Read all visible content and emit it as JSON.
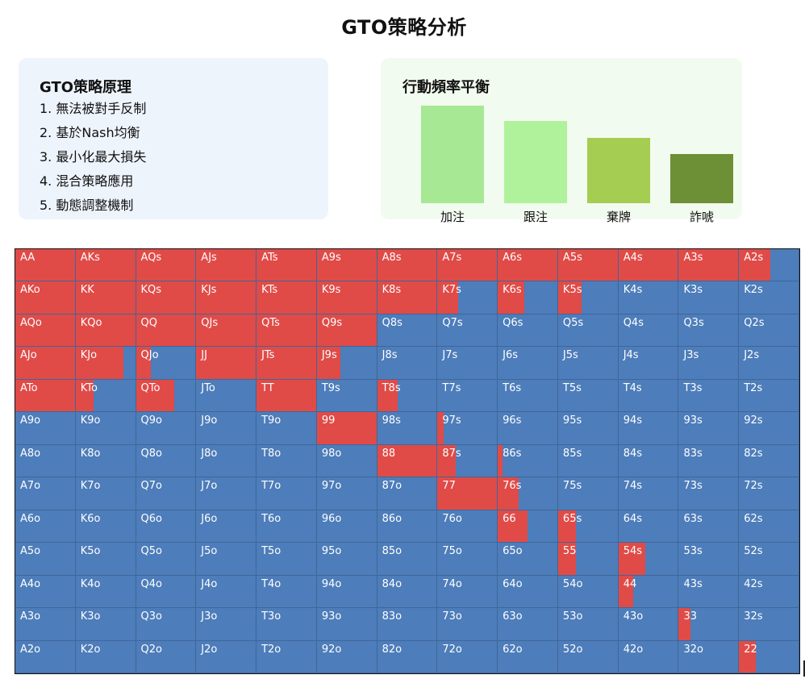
{
  "title": "GTO策略分析",
  "principles": {
    "heading": "GTO策略原理",
    "items": [
      "1. 無法被對手反制",
      "2. 基於Nash均衡",
      "3. 最小化最大損失",
      "4. 混合策略應用",
      "5. 動態調整機制"
    ]
  },
  "frequency": {
    "heading": "行動頻率平衡",
    "bars": [
      {
        "label": "加注",
        "value": 1.0,
        "color": "#a6e894"
      },
      {
        "label": "跟注",
        "value": 0.84,
        "color": "#b0f29c"
      },
      {
        "label": "棄牌",
        "value": 0.67,
        "color": "#a5cd52"
      },
      {
        "label": "詐唬",
        "value": 0.5,
        "color": "#6d8f36"
      }
    ]
  },
  "range_colors": {
    "raise": "#e04b48",
    "other": "#4d7dba"
  },
  "range_grid": {
    "rows": [
      [
        "AA",
        "AKs",
        "AQs",
        "AJs",
        "ATs",
        "A9s",
        "A8s",
        "A7s",
        "A6s",
        "A5s",
        "A4s",
        "A3s",
        "A2s"
      ],
      [
        "AKo",
        "KK",
        "KQs",
        "KJs",
        "KTs",
        "K9s",
        "K8s",
        "K7s",
        "K6s",
        "K5s",
        "K4s",
        "K3s",
        "K2s"
      ],
      [
        "AQo",
        "KQo",
        "QQ",
        "QJs",
        "QTs",
        "Q9s",
        "Q8s",
        "Q7s",
        "Q6s",
        "Q5s",
        "Q4s",
        "Q3s",
        "Q2s"
      ],
      [
        "AJo",
        "KJo",
        "QJo",
        "JJ",
        "JTs",
        "J9s",
        "J8s",
        "J7s",
        "J6s",
        "J5s",
        "J4s",
        "J3s",
        "J2s"
      ],
      [
        "ATo",
        "KTo",
        "QTo",
        "JTo",
        "TT",
        "T9s",
        "T8s",
        "T7s",
        "T6s",
        "T5s",
        "T4s",
        "T3s",
        "T2s"
      ],
      [
        "A9o",
        "K9o",
        "Q9o",
        "J9o",
        "T9o",
        "99",
        "98s",
        "97s",
        "96s",
        "95s",
        "94s",
        "93s",
        "92s"
      ],
      [
        "A8o",
        "K8o",
        "Q8o",
        "J8o",
        "T8o",
        "98o",
        "88",
        "87s",
        "86s",
        "85s",
        "84s",
        "83s",
        "82s"
      ],
      [
        "A7o",
        "K7o",
        "Q7o",
        "J7o",
        "T7o",
        "97o",
        "87o",
        "77",
        "76s",
        "75s",
        "74s",
        "73s",
        "72s"
      ],
      [
        "A6o",
        "K6o",
        "Q6o",
        "J6o",
        "T6o",
        "96o",
        "86o",
        "76o",
        "66",
        "65s",
        "64s",
        "63s",
        "62s"
      ],
      [
        "A5o",
        "K5o",
        "Q5o",
        "J5o",
        "T5o",
        "95o",
        "85o",
        "75o",
        "65o",
        "55",
        "54s",
        "53s",
        "52s"
      ],
      [
        "A4o",
        "K4o",
        "Q4o",
        "J4o",
        "T4o",
        "94o",
        "84o",
        "74o",
        "64o",
        "54o",
        "44",
        "43s",
        "42s"
      ],
      [
        "A3o",
        "K3o",
        "Q3o",
        "J3o",
        "T3o",
        "93o",
        "83o",
        "73o",
        "63o",
        "53o",
        "43o",
        "33",
        "32s"
      ],
      [
        "A2o",
        "K2o",
        "Q2o",
        "J2o",
        "T2o",
        "92o",
        "82o",
        "72o",
        "62o",
        "52o",
        "42o",
        "32o",
        "22"
      ]
    ],
    "raise_frequency": [
      [
        1,
        1,
        1,
        1,
        1,
        1,
        1,
        1,
        1,
        1,
        1,
        1,
        0.52
      ],
      [
        1,
        1,
        1,
        1,
        1,
        1,
        1,
        0.35,
        0.45,
        0.4,
        0,
        0,
        0
      ],
      [
        1,
        1,
        1,
        1,
        1,
        1,
        0,
        0,
        0,
        0,
        0,
        0,
        0
      ],
      [
        1,
        0.8,
        0.25,
        1,
        1,
        0.4,
        0,
        0,
        0,
        0,
        0,
        0,
        0
      ],
      [
        1,
        0.3,
        0.65,
        0,
        1,
        0,
        0.35,
        0,
        0,
        0,
        0,
        0,
        0
      ],
      [
        0,
        0,
        0,
        0,
        0,
        1,
        0,
        0.1,
        0,
        0,
        0,
        0,
        0
      ],
      [
        0,
        0,
        0,
        0,
        0,
        0,
        1,
        0.3,
        0.08,
        0,
        0,
        0,
        0
      ],
      [
        0,
        0,
        0,
        0,
        0,
        0,
        0,
        1,
        0.35,
        0,
        0,
        0,
        0
      ],
      [
        0,
        0,
        0,
        0,
        0,
        0,
        0,
        0,
        0.5,
        0.3,
        0,
        0,
        0
      ],
      [
        0,
        0,
        0,
        0,
        0,
        0,
        0,
        0,
        0,
        0.3,
        0.45,
        0,
        0
      ],
      [
        0,
        0,
        0,
        0,
        0,
        0,
        0,
        0,
        0,
        0,
        0.25,
        0,
        0
      ],
      [
        0,
        0,
        0,
        0,
        0,
        0,
        0,
        0,
        0,
        0,
        0,
        0.2,
        0
      ],
      [
        0,
        0,
        0,
        0,
        0,
        0,
        0,
        0,
        0,
        0,
        0,
        0,
        0.28
      ]
    ]
  }
}
